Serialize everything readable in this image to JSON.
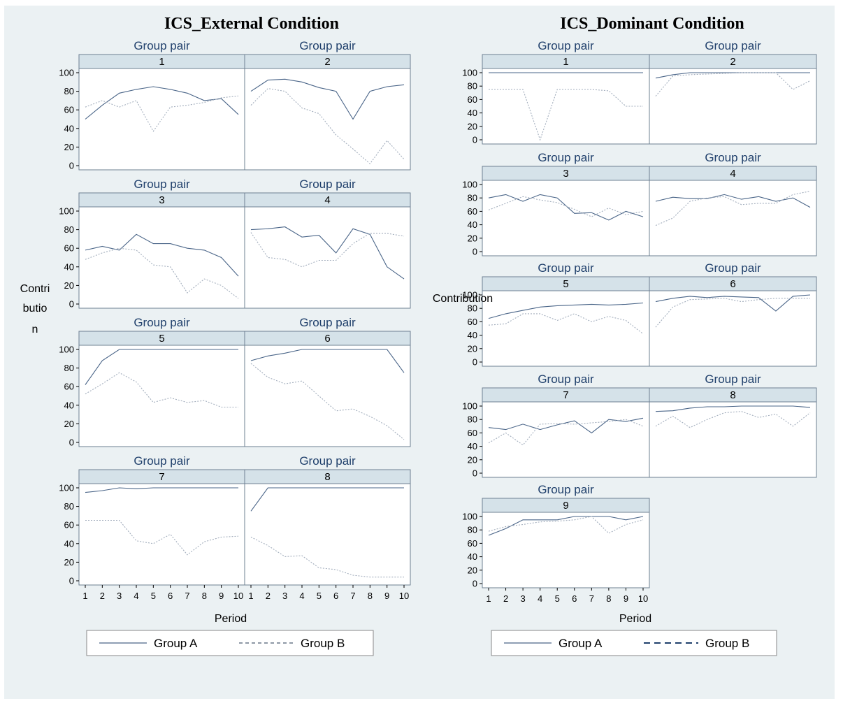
{
  "chart_data": [
    {
      "type": "line",
      "title": "ICS_External Condition",
      "panel_header": "Group pair",
      "xlabel": "Period",
      "ylabel_lines": [
        "Contri",
        "butio",
        "n"
      ],
      "x": [
        1,
        2,
        3,
        4,
        5,
        6,
        7,
        8,
        9,
        10
      ],
      "ylim": [
        0,
        100
      ],
      "yticks": [
        0,
        20,
        40,
        60,
        80,
        100
      ],
      "grid": false,
      "legend": {
        "placement": "bottom",
        "entries": [
          "Group A",
          "Group B"
        ]
      },
      "colors": {
        "group_a": "#4a6588",
        "group_b": "#a3aebd"
      },
      "panels": [
        {
          "pair": "1",
          "series": [
            {
              "name": "Group A",
              "values": [
                50,
                65,
                78,
                82,
                85,
                82,
                78,
                70,
                72,
                55
              ]
            },
            {
              "name": "Group B",
              "values": [
                63,
                70,
                63,
                70,
                37,
                63,
                65,
                68,
                73,
                75
              ]
            }
          ]
        },
        {
          "pair": "2",
          "series": [
            {
              "name": "Group A",
              "values": [
                80,
                92,
                93,
                90,
                84,
                80,
                50,
                80,
                85,
                87
              ]
            },
            {
              "name": "Group B",
              "values": [
                65,
                83,
                80,
                62,
                56,
                33,
                18,
                2,
                27,
                7
              ]
            }
          ]
        },
        {
          "pair": "3",
          "series": [
            {
              "name": "Group A",
              "values": [
                58,
                62,
                58,
                75,
                65,
                65,
                60,
                58,
                50,
                30
              ]
            },
            {
              "name": "Group B",
              "values": [
                48,
                55,
                60,
                58,
                42,
                40,
                12,
                27,
                20,
                6
              ]
            }
          ]
        },
        {
          "pair": "4",
          "series": [
            {
              "name": "Group A",
              "values": [
                80,
                81,
                83,
                72,
                74,
                55,
                81,
                75,
                40,
                27
              ]
            },
            {
              "name": "Group B",
              "values": [
                77,
                50,
                48,
                40,
                47,
                47,
                65,
                76,
                76,
                73
              ]
            }
          ]
        },
        {
          "pair": "5",
          "series": [
            {
              "name": "Group A",
              "values": [
                62,
                88,
                100,
                100,
                100,
                100,
                100,
                100,
                100,
                100
              ]
            },
            {
              "name": "Group B",
              "values": [
                52,
                63,
                75,
                65,
                43,
                48,
                43,
                45,
                38,
                38
              ]
            }
          ]
        },
        {
          "pair": "6",
          "series": [
            {
              "name": "Group A",
              "values": [
                88,
                93,
                96,
                100,
                100,
                100,
                100,
                100,
                100,
                75
              ]
            },
            {
              "name": "Group B",
              "values": [
                85,
                70,
                63,
                66,
                50,
                34,
                36,
                28,
                18,
                3
              ]
            }
          ]
        },
        {
          "pair": "7",
          "series": [
            {
              "name": "Group A",
              "values": [
                95,
                97,
                100,
                99,
                100,
                100,
                100,
                100,
                100,
                100
              ]
            },
            {
              "name": "Group B",
              "values": [
                65,
                65,
                65,
                43,
                40,
                50,
                28,
                42,
                47,
                48
              ]
            }
          ]
        },
        {
          "pair": "8",
          "series": [
            {
              "name": "Group A",
              "values": [
                75,
                100,
                100,
                100,
                100,
                100,
                100,
                100,
                100,
                100
              ]
            },
            {
              "name": "Group B",
              "values": [
                47,
                38,
                26,
                27,
                14,
                12,
                6,
                4,
                4,
                4
              ]
            }
          ]
        }
      ]
    },
    {
      "type": "line",
      "title": "ICS_Dominant Condition",
      "panel_header": "Group pair",
      "xlabel": "Period",
      "ylabel": "Contribution",
      "x": [
        1,
        2,
        3,
        4,
        5,
        6,
        7,
        8,
        9,
        10
      ],
      "ylim": [
        0,
        100
      ],
      "yticks": [
        0,
        20,
        40,
        60,
        80,
        100
      ],
      "grid": false,
      "legend": {
        "placement": "bottom",
        "entries": [
          "Group A",
          "Group B"
        ]
      },
      "colors": {
        "group_a": "#4a6588",
        "group_b": "#a3aebd"
      },
      "panels": [
        {
          "pair": "1",
          "series": [
            {
              "name": "Group A",
              "values": [
                100,
                100,
                100,
                100,
                100,
                100,
                100,
                100,
                100,
                100
              ]
            },
            {
              "name": "Group B",
              "values": [
                75,
                75,
                75,
                0,
                75,
                75,
                75,
                73,
                50,
                50
              ]
            }
          ]
        },
        {
          "pair": "2",
          "series": [
            {
              "name": "Group A",
              "values": [
                92,
                97,
                100,
                100,
                100,
                100,
                100,
                100,
                100,
                100
              ]
            },
            {
              "name": "Group B",
              "values": [
                65,
                95,
                97,
                98,
                99,
                100,
                100,
                100,
                75,
                88
              ]
            }
          ]
        },
        {
          "pair": "3",
          "series": [
            {
              "name": "Group A",
              "values": [
                80,
                85,
                75,
                85,
                80,
                57,
                58,
                47,
                60,
                52
              ]
            },
            {
              "name": "Group B",
              "values": [
                62,
                72,
                82,
                77,
                73,
                63,
                52,
                65,
                55,
                60
              ]
            }
          ]
        },
        {
          "pair": "4",
          "series": [
            {
              "name": "Group A",
              "values": [
                75,
                81,
                79,
                79,
                85,
                78,
                82,
                75,
                80,
                66
              ]
            },
            {
              "name": "Group B",
              "values": [
                39,
                50,
                75,
                80,
                82,
                70,
                72,
                72,
                85,
                90
              ]
            }
          ]
        },
        {
          "pair": "5",
          "series": [
            {
              "name": "Group A",
              "values": [
                65,
                72,
                77,
                82,
                84,
                85,
                86,
                85,
                86,
                88
              ]
            },
            {
              "name": "Group B",
              "values": [
                55,
                57,
                72,
                72,
                62,
                72,
                60,
                68,
                62,
                42
              ]
            }
          ]
        },
        {
          "pair": "6",
          "series": [
            {
              "name": "Group A",
              "values": [
                90,
                95,
                98,
                96,
                98,
                97,
                96,
                76,
                98,
                100
              ]
            },
            {
              "name": "Group B",
              "values": [
                52,
                82,
                93,
                94,
                95,
                90,
                93,
                95,
                95,
                95
              ]
            }
          ]
        },
        {
          "pair": "7",
          "series": [
            {
              "name": "Group A",
              "values": [
                68,
                65,
                73,
                65,
                72,
                78,
                60,
                80,
                77,
                82
              ]
            },
            {
              "name": "Group B",
              "values": [
                45,
                60,
                42,
                73,
                74,
                73,
                75,
                77,
                80,
                70
              ]
            }
          ]
        },
        {
          "pair": "8",
          "series": [
            {
              "name": "Group A",
              "values": [
                92,
                93,
                97,
                99,
                99,
                100,
                100,
                100,
                100,
                98
              ]
            },
            {
              "name": "Group B",
              "values": [
                70,
                85,
                68,
                80,
                90,
                92,
                83,
                88,
                70,
                90
              ]
            }
          ]
        },
        {
          "pair": "9",
          "series": [
            {
              "name": "Group A",
              "values": [
                72,
                82,
                95,
                95,
                95,
                100,
                100,
                100,
                95,
                100
              ]
            },
            {
              "name": "Group B",
              "values": [
                78,
                85,
                88,
                92,
                93,
                95,
                100,
                75,
                88,
                95
              ]
            }
          ]
        }
      ]
    }
  ]
}
